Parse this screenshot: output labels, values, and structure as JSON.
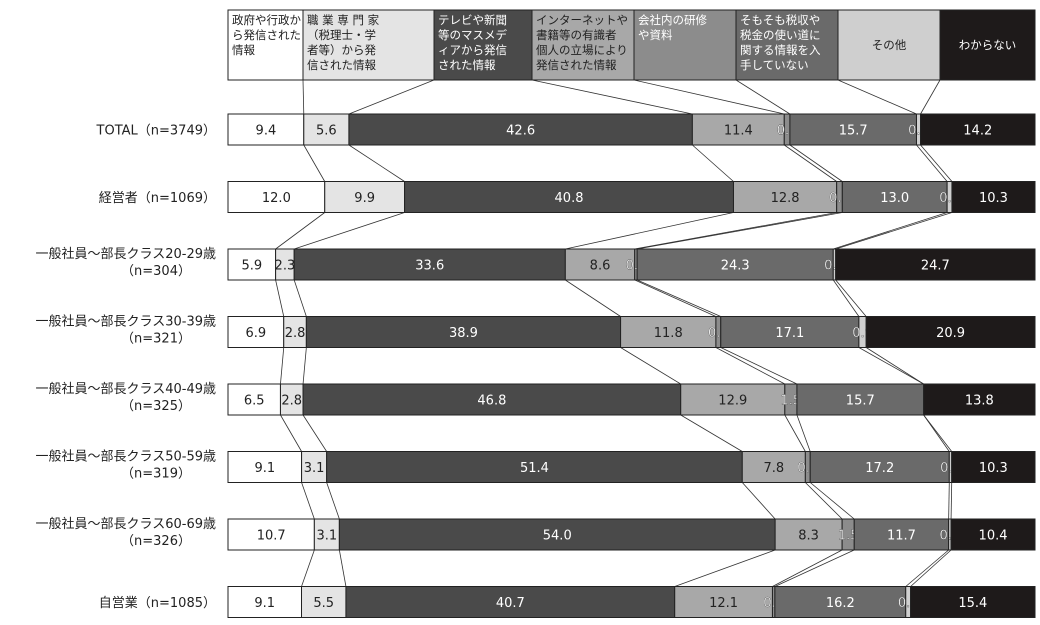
{
  "chart_data": {
    "type": "bar",
    "stacked": "100%",
    "orientation": "horizontal",
    "legend_placement": "top",
    "series": [
      {
        "name": "政府や行政から発信された情報",
        "legend_lines": [
          "政府や行政か",
          "ら発信された",
          "情報"
        ],
        "color": "#ffffff",
        "text_color": "#222222"
      },
      {
        "name": "職業専門家（税理士・学者等）から発信された情報",
        "legend_lines": [
          "職 業 専 門 家",
          "（税理士・学",
          "者等）から発",
          "信された情報"
        ],
        "color": "#e4e4e4",
        "text_color": "#222222"
      },
      {
        "name": "テレビや新聞等のマスメディアから発信された情報",
        "legend_lines": [
          "テレビや新聞",
          "等のマスメデ",
          "ィアから発信",
          "された情報"
        ],
        "color": "#4a4a4a",
        "text_color": "#ffffff"
      },
      {
        "name": "インターネットや書籍等の有識者個人の立場により発信された情報",
        "legend_lines": [
          "インターネットや",
          "書籍等の有識者",
          "個人の立場により",
          "発信された情報"
        ],
        "color": "#a8a8a8",
        "text_color": "#222222"
      },
      {
        "name": "会社内の研修や資料",
        "legend_lines": [
          "会社内の研修",
          "や資料"
        ],
        "color": "#8c8c8c",
        "text_color": "#ffffff"
      },
      {
        "name": "そもそも税収や税金の使い道に関する情報を入手していない",
        "legend_lines": [
          "そもそも税収や",
          "税金の使い道に",
          "関する情報を入",
          "手していない"
        ],
        "color": "#6a6a6a",
        "text_color": "#ffffff"
      },
      {
        "name": "その他",
        "legend_lines": [
          "その他"
        ],
        "color": "#cfcfcf",
        "text_color": "#222222"
      },
      {
        "name": "わからない",
        "legend_lines": [
          "わからない"
        ],
        "color": "#1e1a1a",
        "text_color": "#ffffff"
      }
    ],
    "rows": [
      {
        "label_lines": [
          "TOTAL（n=3749）"
        ],
        "values": [
          9.4,
          5.6,
          42.6,
          11.4,
          0.7,
          15.7,
          0.5,
          14.2
        ],
        "display": [
          "9.4",
          "5.6",
          "42.6",
          "11.4",
          "0.7",
          "15.7",
          "0.5",
          "14.2"
        ]
      },
      {
        "label_lines": [
          "経営者（n=1069）"
        ],
        "values": [
          12.0,
          9.9,
          40.8,
          12.8,
          0.7,
          13.0,
          0.6,
          10.3
        ],
        "display": [
          "12.0",
          "9.9",
          "40.8",
          "12.8",
          "0.7",
          "13.0",
          "0.6",
          "10.3"
        ]
      },
      {
        "label_lines": [
          "一般社員～部長クラス20-29歳",
          "（n=304）"
        ],
        "values": [
          5.9,
          2.3,
          33.6,
          8.6,
          0.3,
          24.3,
          0.3,
          24.7
        ],
        "display": [
          "5.9",
          "2.3",
          "33.6",
          "8.6",
          "0.3",
          "24.3",
          "0.3",
          "24.7"
        ]
      },
      {
        "label_lines": [
          "一般社員～部長クラス30-39歳",
          "（n=321）"
        ],
        "values": [
          6.9,
          2.8,
          38.9,
          11.8,
          0.6,
          17.1,
          0.9,
          20.9
        ],
        "display": [
          "6.9",
          "2.8",
          "38.9",
          "11.8",
          "0.6",
          "17.1",
          "0.9",
          "20.9"
        ]
      },
      {
        "label_lines": [
          "一般社員～部長クラス40-49歳",
          "（n=325）"
        ],
        "values": [
          6.5,
          2.8,
          46.8,
          12.9,
          1.5,
          15.7,
          0.0,
          13.8
        ],
        "display": [
          "6.5",
          "2.8",
          "46.8",
          "12.9",
          "1.5",
          "15.7",
          "",
          "13.8"
        ]
      },
      {
        "label_lines": [
          "一般社員～部長クラス50-59歳",
          "（n=319）"
        ],
        "values": [
          9.1,
          3.1,
          51.4,
          7.8,
          0.6,
          17.2,
          0.3,
          10.3
        ],
        "display": [
          "9.1",
          "3.1",
          "51.4",
          "7.8",
          "0.6",
          "17.2",
          "0.3",
          "10.3"
        ]
      },
      {
        "label_lines": [
          "一般社員～部長クラス60-69歳",
          "（n=326）"
        ],
        "values": [
          10.7,
          3.1,
          54.0,
          8.3,
          1.5,
          11.7,
          0.3,
          10.4
        ],
        "display": [
          "10.7",
          "3.1",
          "54.0",
          "8.3",
          "1.5",
          "11.7",
          "0.3",
          "10.4"
        ]
      },
      {
        "label_lines": [
          "自営業（n=1085）"
        ],
        "values": [
          9.1,
          5.5,
          40.7,
          12.1,
          0.3,
          16.2,
          0.6,
          15.4
        ],
        "display": [
          "9.1",
          "5.5",
          "40.7",
          "12.1",
          "0.3",
          "16.2",
          "0.6",
          "15.4"
        ]
      }
    ]
  }
}
